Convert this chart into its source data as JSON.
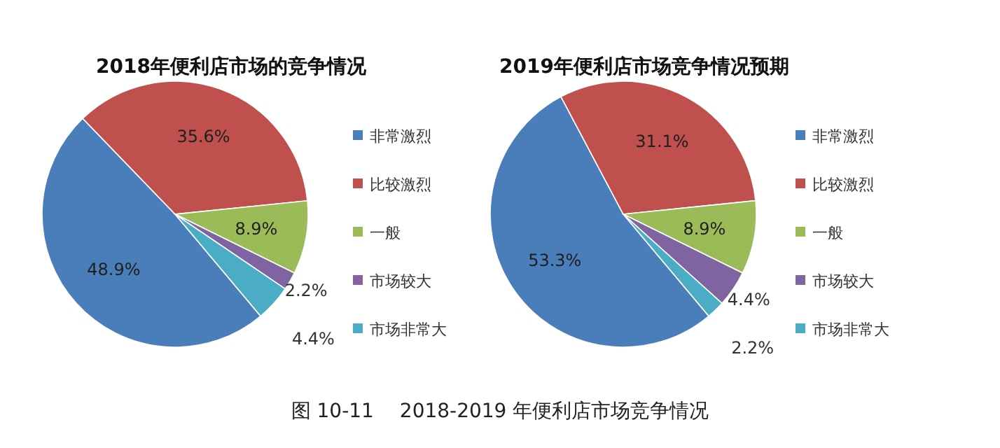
{
  "chart_data": [
    {
      "type": "pie",
      "title": "2018年便利店市场的竞争情况",
      "categories": [
        "非常激烈",
        "比较激烈",
        "一般",
        "市场较大",
        "市场非常大"
      ],
      "values": [
        48.9,
        35.6,
        8.9,
        2.2,
        4.4
      ],
      "colors": [
        "#4a7ebb",
        "#c0504d",
        "#9bbb59",
        "#8064a2",
        "#4bacc6"
      ],
      "value_labels": [
        "48.9%",
        "35.6%",
        "8.9%",
        "2.2%",
        "4.4%"
      ],
      "legend": "right"
    },
    {
      "type": "pie",
      "title": "2019年便利店市场竞争情况预期",
      "categories": [
        "非常激烈",
        "比较激烈",
        "一般",
        "市场较大",
        "市场非常大"
      ],
      "values": [
        53.3,
        31.1,
        8.9,
        4.4,
        2.2
      ],
      "colors": [
        "#4a7ebb",
        "#c0504d",
        "#9bbb59",
        "#8064a2",
        "#4bacc6"
      ],
      "value_labels": [
        "53.3%",
        "31.1%",
        "8.9%",
        "4.4%",
        "2.2%"
      ],
      "legend": "right",
      "annotations": [
        "图 10-11　 2018-2019 年便利店市场竞争情况"
      ]
    }
  ]
}
